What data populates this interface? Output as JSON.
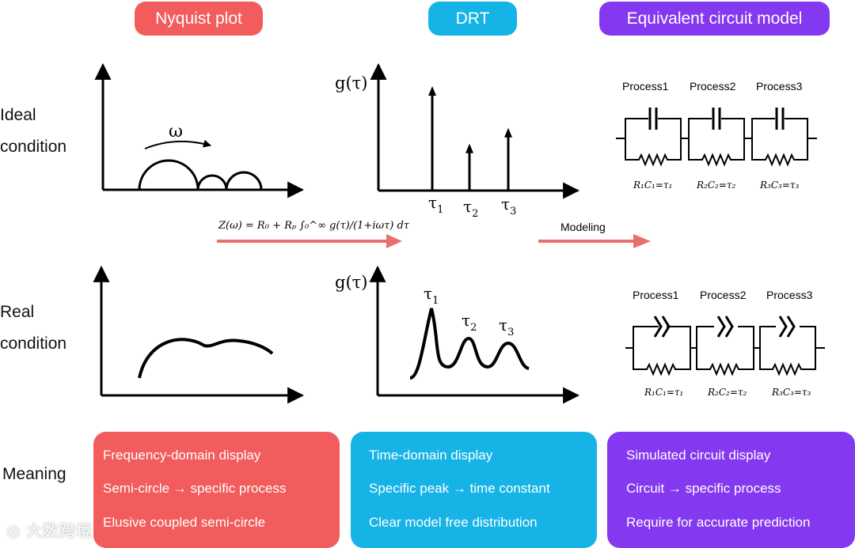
{
  "headers": {
    "nyquist": "Nyquist plot",
    "drt": "DRT",
    "ecm": "Equivalent circuit model"
  },
  "rows": {
    "ideal": [
      "Ideal",
      "condition"
    ],
    "real": [
      "Real",
      "condition"
    ],
    "meaning": "Meaning"
  },
  "ideal": {
    "omega": "ω",
    "g_label": "g(τ)",
    "taus": [
      "τ",
      "τ",
      "τ"
    ],
    "tau_subs": [
      "1",
      "2",
      "3"
    ]
  },
  "equation": "Z(ω) = R₀ + Rₚ ∫₀^∞ g(τ)/(1+iωτ) dτ",
  "modeling": "Modeling",
  "real": {
    "g_label": "g(τ)",
    "taus": [
      "τ",
      "τ",
      "τ"
    ],
    "tau_subs": [
      "1",
      "2",
      "3"
    ]
  },
  "circuit_ideal": {
    "processes": [
      "Process1",
      "Process2",
      "Process3"
    ],
    "relations": [
      "R₁C₁=τ₁",
      "R₂C₂=τ₂",
      "R₃C₃=τ₃"
    ]
  },
  "circuit_real": {
    "processes": [
      "Process1",
      "Process2",
      "Process3"
    ],
    "relations": [
      "R₁C₁=τ₁",
      "R₂C₂=τ₂",
      "R₃C₃=τ₃"
    ]
  },
  "meaning": {
    "nyquist": [
      "Frequency-domain display",
      "Semi-circle → specific process",
      "Elusive coupled semi-circle"
    ],
    "drt": [
      "Time-domain display",
      "Specific peak →  time constant",
      "Clear model free distribution"
    ],
    "ecm": [
      "Simulated circuit display",
      "Circuit  →  specific process",
      "Require for accurate prediction"
    ]
  },
  "watermark": "大数跨境",
  "colors": {
    "red": "#f25c5c",
    "cyan": "#16b3e6",
    "purple": "#8438f0",
    "arrow": "#e8706c"
  },
  "ideal_peaks": [
    {
      "tau": 1,
      "height": 1.0
    },
    {
      "tau": 2,
      "height": 0.45
    },
    {
      "tau": 3,
      "height": 0.6
    }
  ]
}
